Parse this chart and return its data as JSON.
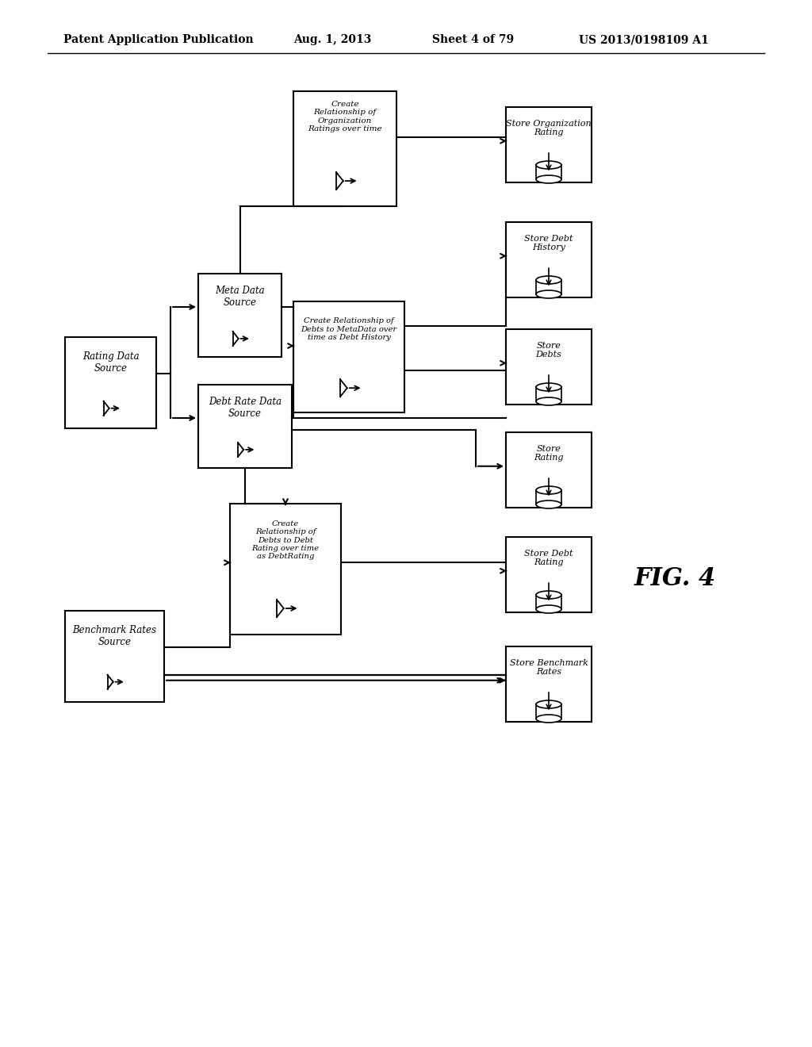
{
  "title": "Patent Application Publication",
  "date": "Aug. 1, 2013",
  "sheet": "Sheet 4 of 79",
  "patent_num": "US 2013/0198109 A1",
  "fig_label": "FIG. 4",
  "background_color": "#ffffff"
}
